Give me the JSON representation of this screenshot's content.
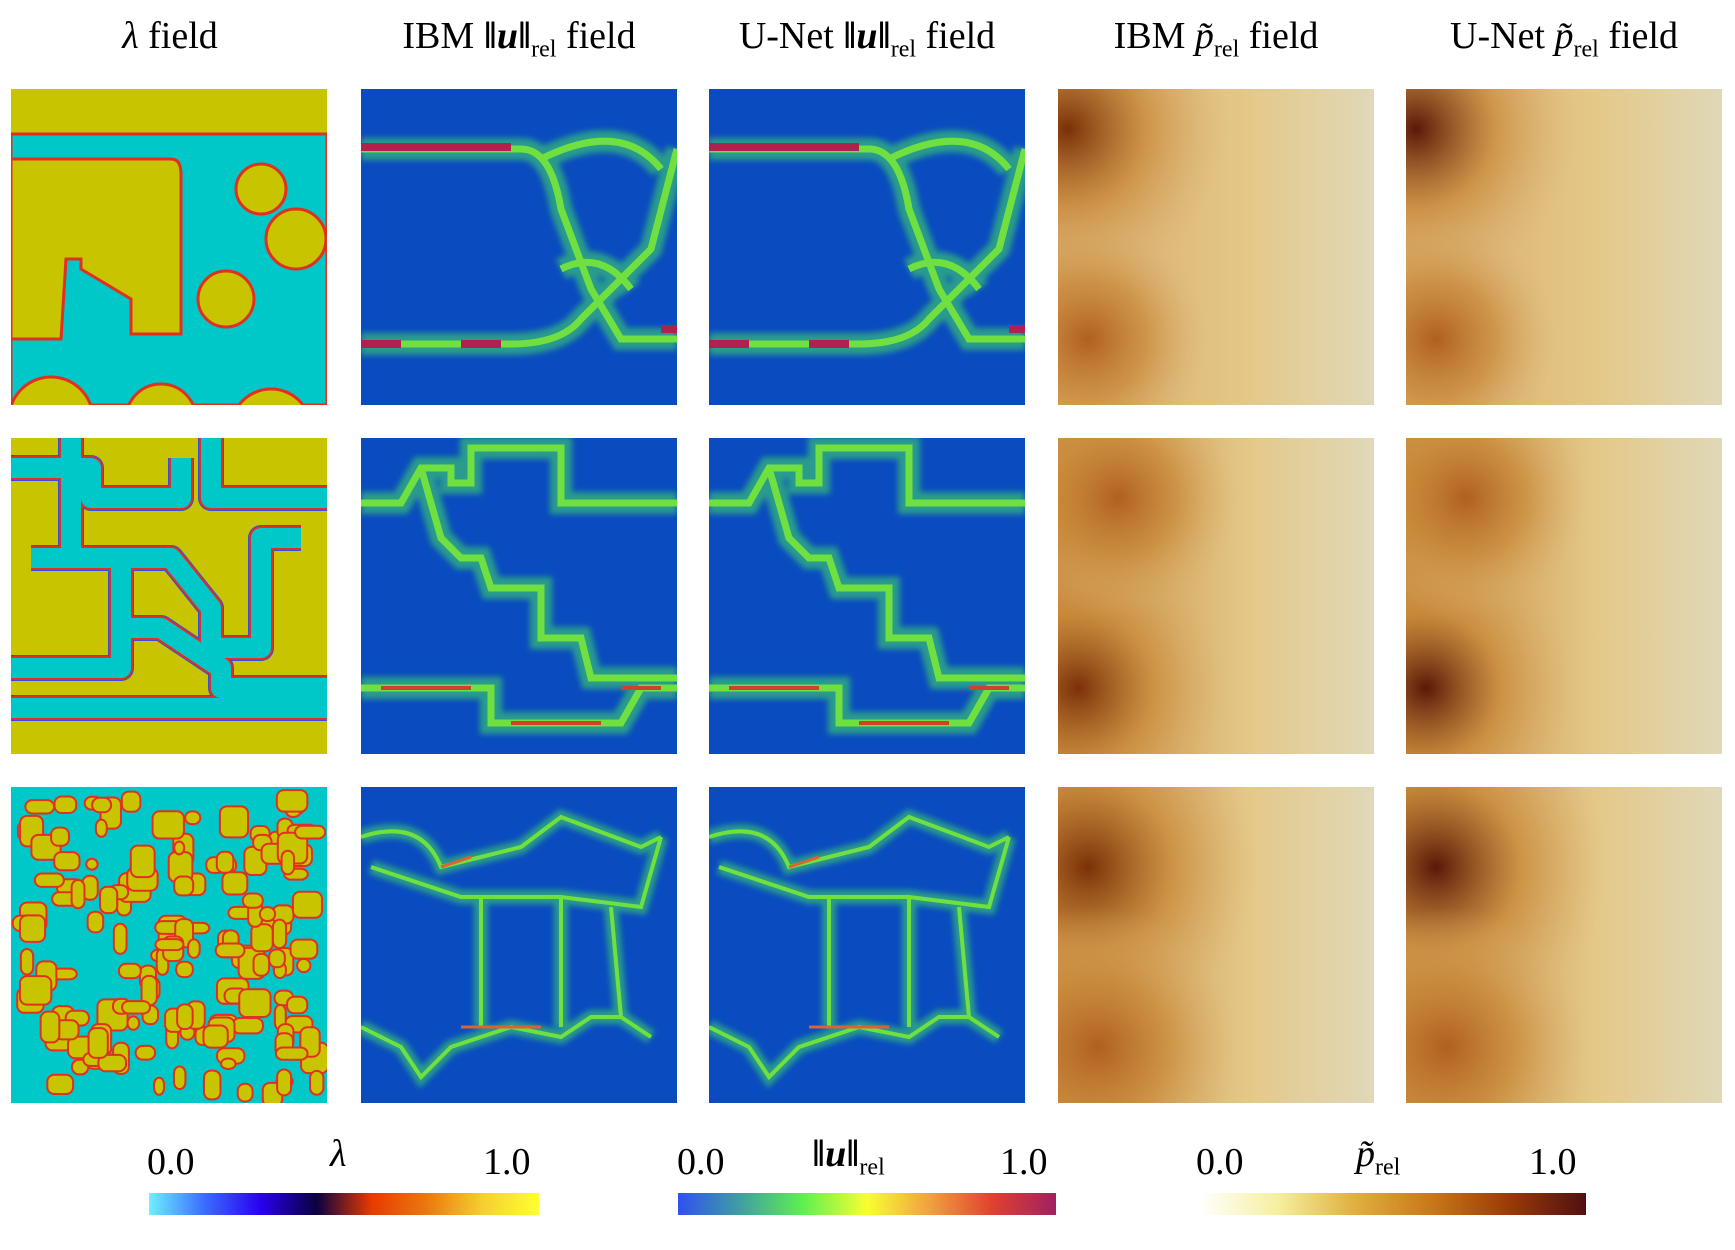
{
  "columns": [
    {
      "title": "λ field"
    },
    {
      "title": "IBM ‖u‖rel field"
    },
    {
      "title": "U-Net ‖u‖rel field"
    },
    {
      "title": "IBM p̃rel field"
    },
    {
      "title": "U-Net p̃rel field"
    }
  ],
  "titles": {
    "c0_sym": "λ",
    "c0_rest": " field",
    "c1_pre": "IBM ",
    "c1_sym": "‖u‖",
    "c1_sub": "rel",
    "c1_rest": " field",
    "c2_pre": "U-Net ",
    "c2_sym": "‖u‖",
    "c2_sub": "rel",
    "c2_rest": " field",
    "c3_pre": "IBM ",
    "c3_sym": "p̃",
    "c3_sub": "rel",
    "c3_rest": " field",
    "c4_pre": "U-Net ",
    "c4_sym": "p̃",
    "c4_sub": "rel",
    "c4_rest": " field"
  },
  "rows": 3,
  "colorbars": [
    {
      "name": "λ",
      "sub": "",
      "min": "0.0",
      "max": "1.0",
      "colors": [
        "#6ef0ff",
        "#3a6cff",
        "#2a00f0",
        "#0a0040",
        "#e83a00",
        "#eb7a10",
        "#f5d030",
        "#ffff30"
      ]
    },
    {
      "name": "‖u‖",
      "sub": "rel",
      "min": "0.0",
      "max": "1.0",
      "colors": [
        "#3050f0",
        "#40a0a0",
        "#60f050",
        "#f8ff30",
        "#f0a040",
        "#e04030",
        "#a02060"
      ]
    },
    {
      "name": "p̃",
      "sub": "rel",
      "min": "0.0",
      "max": "1.0",
      "colors": [
        "#ffffff",
        "#f5f0a0",
        "#e0b040",
        "#c87818",
        "#9a3a08",
        "#501010"
      ]
    }
  ],
  "field_colors": {
    "solid": "#c8c400",
    "fluid": "#00c8c8",
    "border_blue": "#3050e0",
    "border_red": "#e03020",
    "velocity_bg": "#0a4cbf"
  }
}
